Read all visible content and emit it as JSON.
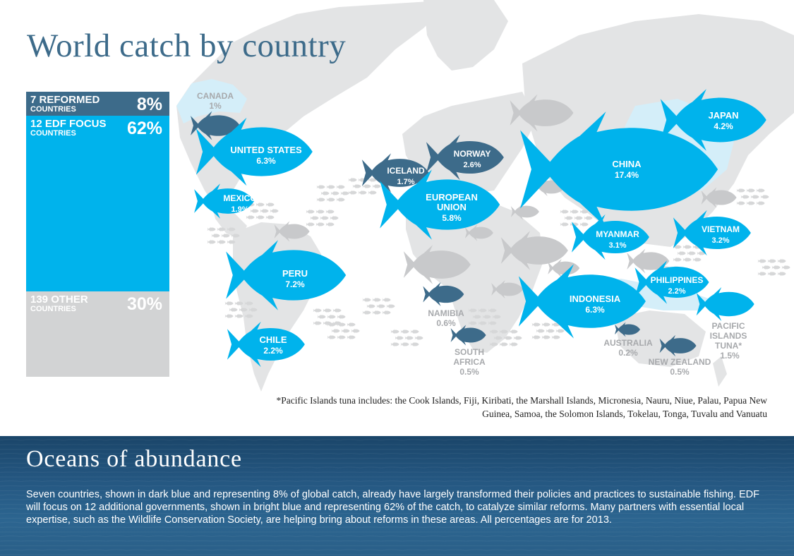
{
  "title": "World catch by country",
  "colors": {
    "reformed": "#3d6b8a",
    "focus": "#00b3ec",
    "other": "#c8c9cb",
    "land": "#e3e4e5",
    "highlight_land": "#d4eef9",
    "label_other": "#a7a9ac"
  },
  "chart_data": {
    "type": "bar",
    "stacked": true,
    "categories": [
      "7 REFORMED COUNTRIES",
      "12 EDF FOCUS COUNTRIES",
      "139 OTHER COUNTRIES"
    ],
    "values": [
      8,
      62,
      30
    ],
    "unit": "%",
    "groups": [
      {
        "label_line1": "7 REFORMED",
        "label_line2": "COUNTRIES",
        "value_label": "8%",
        "value": 8,
        "color": "#3d6b8a"
      },
      {
        "label_line1": "12 EDF FOCUS",
        "label_line2": "COUNTRIES",
        "value_label": "62%",
        "value": 62,
        "color": "#00b3ec"
      },
      {
        "label_line1": "139 OTHER",
        "label_line2": "COUNTRIES",
        "value_label": "30%",
        "value": 30,
        "color": "#d2d3d4"
      }
    ],
    "countries": [
      {
        "name": "CANADA",
        "value": 1,
        "value_label": "1%",
        "group": "reformed"
      },
      {
        "name": "UNITED STATES",
        "value": 6.3,
        "value_label": "6.3%",
        "group": "focus"
      },
      {
        "name": "MEXICO",
        "value": 1.9,
        "value_label": "1.9%",
        "group": "focus"
      },
      {
        "name": "PERU",
        "value": 7.2,
        "value_label": "7.2%",
        "group": "focus"
      },
      {
        "name": "CHILE",
        "value": 2.2,
        "value_label": "2.2%",
        "group": "focus"
      },
      {
        "name": "ICELAND",
        "value": 1.7,
        "value_label": "1.7%",
        "group": "reformed"
      },
      {
        "name": "NORWAY",
        "value": 2.6,
        "value_label": "2.6%",
        "group": "reformed"
      },
      {
        "name": "EUROPEAN UNION",
        "value": 5.8,
        "value_label": "5.8%",
        "group": "focus"
      },
      {
        "name": "NAMIBIA",
        "value": 0.6,
        "value_label": "0.6%",
        "group": "reformed"
      },
      {
        "name": "SOUTH AFRICA",
        "value": 0.5,
        "value_label": "0.5%",
        "group": "reformed"
      },
      {
        "name": "CHINA",
        "value": 17.4,
        "value_label": "17.4%",
        "group": "focus"
      },
      {
        "name": "JAPAN",
        "value": 4.2,
        "value_label": "4.2%",
        "group": "focus"
      },
      {
        "name": "MYANMAR",
        "value": 3.1,
        "value_label": "3.1%",
        "group": "focus"
      },
      {
        "name": "VIETNAM",
        "value": 3.2,
        "value_label": "3.2%",
        "group": "focus"
      },
      {
        "name": "PHILIPPINES",
        "value": 2.2,
        "value_label": "2.2%",
        "group": "focus"
      },
      {
        "name": "INDONESIA",
        "value": 6.3,
        "value_label": "6.3%",
        "group": "focus"
      },
      {
        "name": "AUSTRALIA",
        "value": 0.2,
        "value_label": "0.2%",
        "group": "reformed"
      },
      {
        "name": "NEW ZEALAND",
        "value": 0.5,
        "value_label": "0.5%",
        "group": "reformed"
      },
      {
        "name": "PACIFIC ISLANDS TUNA*",
        "value": 1.5,
        "value_label": "1.5%",
        "group": "focus"
      }
    ]
  },
  "footnote": {
    "line1": "*Pacific Islands tuna includes: the Cook Islands, Fiji, Kiribati, the Marshall Islands, Micronesia, Nauru,  Niue, Palau, Papua New",
    "line2": "Guinea, Samoa, the Solomon Islands, Tokelau, Tonga, Tuvalu and Vanuatu"
  },
  "bottom": {
    "heading": "Oceans of abundance",
    "text": "Seven countries, shown in dark blue and representing 8% of global catch, already have largely transformed their policies and practices to sustainable fishing. EDF will focus on 12 additional governments, shown in bright blue and representing 62% of the catch, to catalyze similar reforms. Many partners with essential local expertise, such as the Wildlife Conservation Society, are helping bring about reforms in these areas. All percentages are for 2013."
  }
}
